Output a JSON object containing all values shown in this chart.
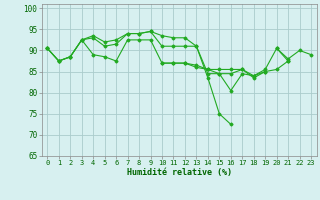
{
  "x": [
    0,
    1,
    2,
    3,
    4,
    5,
    6,
    7,
    8,
    9,
    10,
    11,
    12,
    13,
    14,
    15,
    16,
    17,
    18,
    19,
    20,
    21,
    22,
    23
  ],
  "line1": [
    90.5,
    87.5,
    88.5,
    92.5,
    93.0,
    91.0,
    91.5,
    94.0,
    94.0,
    94.5,
    93.5,
    93.0,
    93.0,
    91.0,
    83.5,
    75.0,
    72.5,
    null,
    null,
    null,
    90.5,
    87.5,
    null,
    null
  ],
  "line2": [
    90.5,
    87.5,
    88.5,
    92.5,
    93.5,
    92.0,
    92.5,
    94.0,
    94.0,
    94.5,
    91.0,
    91.0,
    91.0,
    91.0,
    84.5,
    84.5,
    80.5,
    84.5,
    84.0,
    85.5,
    90.5,
    88.0,
    90.0,
    89.0
  ],
  "line3": [
    90.5,
    87.5,
    88.5,
    92.5,
    89.0,
    88.5,
    87.5,
    92.5,
    92.5,
    92.5,
    87.0,
    87.0,
    87.0,
    86.0,
    85.5,
    85.5,
    85.5,
    85.5,
    84.0,
    85.0,
    85.5,
    87.5,
    null,
    null
  ],
  "line4": [
    null,
    null,
    null,
    null,
    null,
    null,
    null,
    null,
    null,
    null,
    87.0,
    87.0,
    87.0,
    86.5,
    85.5,
    84.5,
    84.5,
    85.5,
    83.5,
    85.0,
    null,
    null,
    null,
    null
  ],
  "line_color": "#22aa22",
  "bg_color": "#d7f0f0",
  "grid_color": "#aacccc",
  "xlabel": "Humidité relative (%)",
  "ylim": [
    65,
    101
  ],
  "xlim": [
    -0.5,
    23.5
  ],
  "yticks": [
    65,
    70,
    75,
    80,
    85,
    90,
    95,
    100
  ],
  "xticks": [
    0,
    1,
    2,
    3,
    4,
    5,
    6,
    7,
    8,
    9,
    10,
    11,
    12,
    13,
    14,
    15,
    16,
    17,
    18,
    19,
    20,
    21,
    22,
    23
  ],
  "figsize": [
    3.2,
    2.0
  ],
  "dpi": 100
}
